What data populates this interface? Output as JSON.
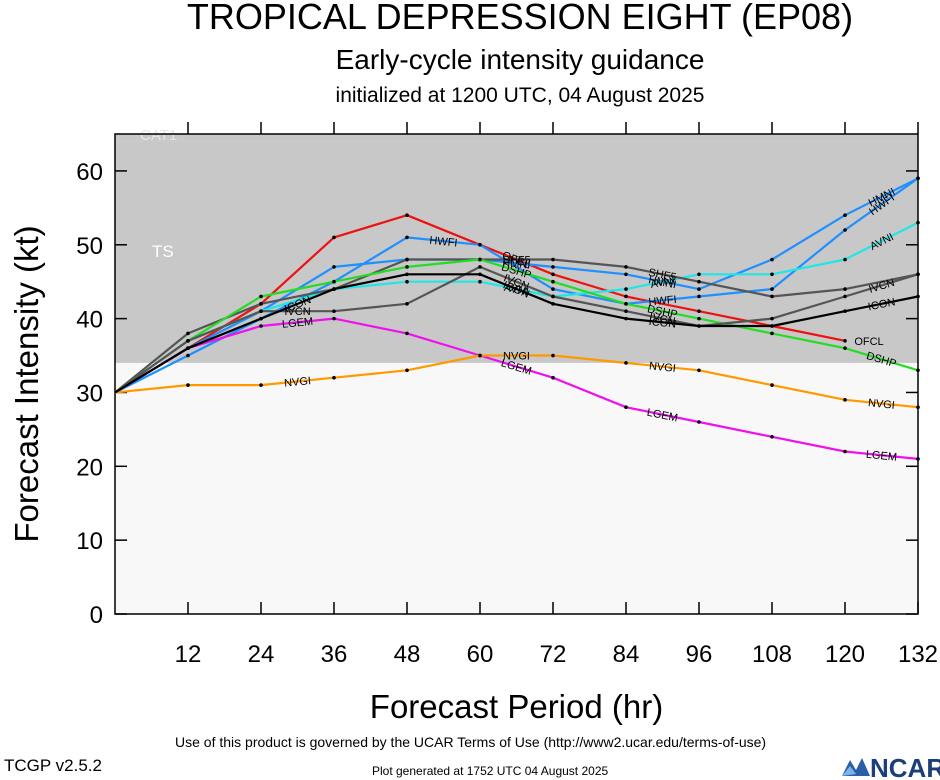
{
  "header": {
    "title": "TROPICAL DEPRESSION EIGHT (EP08)",
    "subtitle": "Early-cycle intensity guidance",
    "init_text": "initialized at 1200 UTC, 04 August 2025"
  },
  "footer": {
    "terms": "Use of this product is governed by the UCAR Terms of Use (http://www2.ucar.edu/terms-of-use)",
    "version": "TCGP v2.5.2",
    "generated": "Plot generated at 1752 UTC   04 August 2025",
    "logo_text": "NCAR"
  },
  "chart_data": {
    "type": "line",
    "title": "TROPICAL DEPRESSION EIGHT (EP08)",
    "subtitle": "Early-cycle intensity guidance",
    "xlabel": "Forecast Period (hr)",
    "ylabel": "Forecast Intensity (kt)",
    "xlim": [
      0,
      132
    ],
    "ylim": [
      0,
      65
    ],
    "xticks": [
      12,
      24,
      36,
      48,
      60,
      72,
      84,
      96,
      108,
      120,
      132
    ],
    "yticks": [
      0,
      10,
      20,
      30,
      40,
      50,
      60
    ],
    "bands": [
      {
        "label": "TS",
        "from": 34,
        "to": 64,
        "color": "#c8c8c8"
      },
      {
        "label": "CAT1",
        "from": 64,
        "to": 65,
        "color": "#c8c8c8"
      }
    ],
    "lower_band_color": "#f8f8f8",
    "series": [
      {
        "name": "OFCL",
        "color": "#ee1111",
        "label_at": [
          [
            60,
            0
          ],
          [
            120,
            0
          ]
        ],
        "points": [
          [
            0,
            30
          ],
          [
            12,
            36
          ],
          [
            24,
            42
          ],
          [
            36,
            51
          ],
          [
            48,
            54
          ],
          [
            60,
            50
          ],
          [
            72,
            46
          ],
          [
            84,
            43
          ],
          [
            96,
            41
          ],
          [
            108,
            39
          ],
          [
            120,
            37
          ]
        ]
      },
      {
        "name": "HWFI",
        "color": "#1e90ff",
        "label_at": [
          [
            48,
            0
          ],
          [
            84,
            0
          ],
          [
            120,
            0
          ]
        ],
        "points": [
          [
            0,
            30
          ],
          [
            12,
            35
          ],
          [
            24,
            40
          ],
          [
            36,
            45
          ],
          [
            48,
            51
          ],
          [
            60,
            50
          ],
          [
            72,
            44
          ],
          [
            84,
            42
          ],
          [
            96,
            43
          ],
          [
            108,
            44
          ],
          [
            120,
            52
          ],
          [
            132,
            59
          ]
        ]
      },
      {
        "name": "HMNI",
        "color": "#1e90ff",
        "label_at": [
          [
            60,
            1
          ],
          [
            84,
            0
          ],
          [
            120,
            0
          ]
        ],
        "points": [
          [
            0,
            30
          ],
          [
            12,
            36
          ],
          [
            24,
            41
          ],
          [
            36,
            47
          ],
          [
            48,
            48
          ],
          [
            60,
            48
          ],
          [
            72,
            47
          ],
          [
            84,
            46
          ],
          [
            96,
            44
          ],
          [
            108,
            48
          ],
          [
            120,
            54
          ],
          [
            132,
            59
          ]
        ]
      },
      {
        "name": "AVNI",
        "color": "#22e5e5",
        "label_at": [
          [
            60,
            0
          ],
          [
            84,
            0
          ],
          [
            120,
            0
          ]
        ],
        "points": [
          [
            0,
            30
          ],
          [
            12,
            37
          ],
          [
            24,
            41
          ],
          [
            36,
            44
          ],
          [
            48,
            45
          ],
          [
            60,
            45
          ],
          [
            72,
            43
          ],
          [
            84,
            44
          ],
          [
            96,
            46
          ],
          [
            108,
            46
          ],
          [
            120,
            48
          ],
          [
            132,
            53
          ]
        ]
      },
      {
        "name": "SHF5",
        "color": "#555555",
        "label_at": [
          [
            60,
            0
          ],
          [
            84,
            0
          ]
        ],
        "points": [
          [
            0,
            30
          ],
          [
            12,
            38
          ],
          [
            24,
            42
          ],
          [
            36,
            44
          ],
          [
            48,
            48
          ],
          [
            60,
            48
          ],
          [
            72,
            48
          ],
          [
            84,
            47
          ],
          [
            96,
            45
          ],
          [
            108,
            43
          ],
          [
            120,
            44
          ],
          [
            132,
            46
          ]
        ]
      },
      {
        "name": "DSHP",
        "color": "#22dd22",
        "label_at": [
          [
            60,
            1
          ],
          [
            84,
            1
          ],
          [
            120,
            0
          ]
        ],
        "points": [
          [
            0,
            30
          ],
          [
            12,
            37
          ],
          [
            24,
            43
          ],
          [
            36,
            45
          ],
          [
            48,
            47
          ],
          [
            60,
            48
          ],
          [
            72,
            45
          ],
          [
            84,
            42
          ],
          [
            96,
            40
          ],
          [
            108,
            38
          ],
          [
            120,
            36
          ],
          [
            132,
            33
          ]
        ]
      },
      {
        "name": "LGEM",
        "color": "#ee11ee",
        "label_at": [
          [
            24,
            0
          ],
          [
            60,
            0
          ],
          [
            84,
            0
          ],
          [
            120,
            0
          ]
        ],
        "points": [
          [
            0,
            30
          ],
          [
            12,
            36
          ],
          [
            24,
            39
          ],
          [
            36,
            40
          ],
          [
            48,
            38
          ],
          [
            60,
            35
          ],
          [
            72,
            32
          ],
          [
            84,
            28
          ],
          [
            96,
            26
          ],
          [
            108,
            24
          ],
          [
            120,
            22
          ],
          [
            132,
            21
          ]
        ]
      },
      {
        "name": "NVGI",
        "color": "#ff9900",
        "label_at": [
          [
            24,
            0
          ],
          [
            60,
            0
          ],
          [
            84,
            0
          ],
          [
            120,
            0
          ]
        ],
        "points": [
          [
            0,
            30
          ],
          [
            12,
            31
          ],
          [
            24,
            31
          ],
          [
            36,
            32
          ],
          [
            48,
            33
          ],
          [
            60,
            35
          ],
          [
            72,
            35
          ],
          [
            84,
            34
          ],
          [
            96,
            33
          ],
          [
            108,
            31
          ],
          [
            120,
            29
          ],
          [
            132,
            28
          ]
        ]
      },
      {
        "name": "IVCN",
        "color": "#555555",
        "label_at": [
          [
            24,
            0
          ],
          [
            60,
            0
          ],
          [
            84,
            0
          ],
          [
            120,
            0
          ]
        ],
        "points": [
          [
            0,
            30
          ],
          [
            12,
            37
          ],
          [
            24,
            41
          ],
          [
            36,
            41
          ],
          [
            48,
            42
          ],
          [
            60,
            47
          ],
          [
            72,
            43
          ],
          [
            84,
            41
          ],
          [
            96,
            39
          ],
          [
            108,
            40
          ],
          [
            120,
            43
          ],
          [
            132,
            46
          ]
        ]
      },
      {
        "name": "ICON",
        "color": "#000000",
        "label_at": [
          [
            24,
            0
          ],
          [
            60,
            0
          ],
          [
            84,
            0
          ],
          [
            120,
            0
          ]
        ],
        "points": [
          [
            0,
            30
          ],
          [
            12,
            36
          ],
          [
            24,
            40
          ],
          [
            36,
            44
          ],
          [
            48,
            46
          ],
          [
            60,
            46
          ],
          [
            72,
            42
          ],
          [
            84,
            40
          ],
          [
            96,
            39
          ],
          [
            108,
            39
          ],
          [
            120,
            41
          ],
          [
            132,
            43
          ]
        ]
      }
    ]
  }
}
